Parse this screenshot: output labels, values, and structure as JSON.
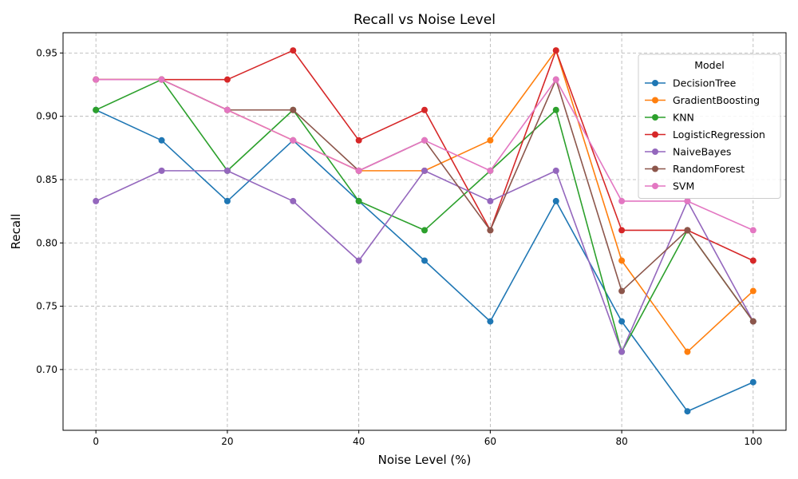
{
  "chart_data": {
    "type": "line",
    "title": "Recall vs Noise Level",
    "xlabel": "Noise Level (%)",
    "ylabel": "Recall",
    "xlim": [
      -5,
      105
    ],
    "ylim": [
      0.652,
      0.966
    ],
    "xticks": [
      0,
      20,
      40,
      60,
      80,
      100
    ],
    "yticks": [
      0.7,
      0.75,
      0.8,
      0.85,
      0.9,
      0.95
    ],
    "ytick_labels": [
      "0.70",
      "0.75",
      "0.80",
      "0.85",
      "0.90",
      "0.95"
    ],
    "grid": true,
    "legend_title": "Model",
    "legend_position": "top-right",
    "x": [
      0,
      10,
      20,
      30,
      40,
      50,
      60,
      70,
      80,
      90,
      100
    ],
    "series": [
      {
        "name": "DecisionTree",
        "color": "#1f77b4",
        "values": [
          0.905,
          0.881,
          0.833,
          0.881,
          0.833,
          0.786,
          0.738,
          0.833,
          0.738,
          0.667,
          0.69
        ]
      },
      {
        "name": "GradientBoosting",
        "color": "#ff7f0e",
        "values": [
          0.929,
          0.929,
          0.905,
          0.881,
          0.857,
          0.857,
          0.881,
          0.952,
          0.786,
          0.714,
          0.762
        ]
      },
      {
        "name": "KNN",
        "color": "#2ca02c",
        "values": [
          0.905,
          0.929,
          0.857,
          0.905,
          0.833,
          0.81,
          0.857,
          0.905,
          0.714,
          0.81,
          0.738
        ]
      },
      {
        "name": "LogisticRegression",
        "color": "#d62728",
        "values": [
          0.929,
          0.929,
          0.929,
          0.952,
          0.881,
          0.905,
          0.81,
          0.952,
          0.81,
          0.81,
          0.786
        ]
      },
      {
        "name": "NaiveBayes",
        "color": "#9467bd",
        "values": [
          0.833,
          0.857,
          0.857,
          0.833,
          0.786,
          0.857,
          0.833,
          0.857,
          0.714,
          0.833,
          0.738
        ]
      },
      {
        "name": "RandomForest",
        "color": "#8c564b",
        "values": [
          0.929,
          0.929,
          0.905,
          0.905,
          0.857,
          0.881,
          0.81,
          0.929,
          0.762,
          0.81,
          0.738
        ]
      },
      {
        "name": "SVM",
        "color": "#e377c2",
        "values": [
          0.929,
          0.929,
          0.905,
          0.881,
          0.857,
          0.881,
          0.857,
          0.929,
          0.833,
          0.833,
          0.81
        ]
      }
    ]
  }
}
